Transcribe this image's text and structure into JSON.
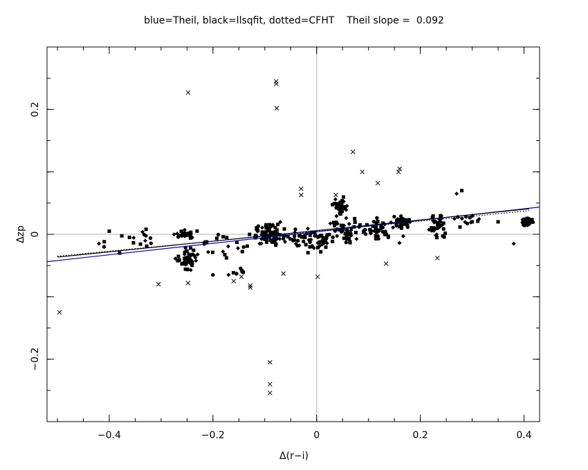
{
  "chart_data": {
    "type": "scatter",
    "title": "blue=Theil, black=llsqfit, dotted=CFHT    Theil slope =  0.092",
    "xlabel": "Δ(r−i)",
    "ylabel": "Δzp",
    "xlim": [
      -0.52,
      0.43
    ],
    "ylim": [
      -0.3,
      0.3
    ],
    "x_ticks": [
      -0.4,
      -0.2,
      0,
      0.2,
      0.4
    ],
    "x_tick_labels": [
      "−0.4",
      "−0.2",
      "0",
      "0.2",
      "0.4"
    ],
    "y_ticks": [
      -0.2,
      0,
      0.2
    ],
    "y_tick_labels": [
      "−0.2",
      "0",
      "0.2"
    ],
    "grid": false,
    "reference_lines": {
      "x": 0,
      "y": 0,
      "color": "#b0b0b0"
    },
    "fit_lines": [
      {
        "name": "Theil",
        "style": "solid",
        "color": "#0000cc",
        "slope": 0.092,
        "intercept": 0.004,
        "x_range": [
          -0.52,
          0.43
        ]
      },
      {
        "name": "llsqfit",
        "style": "solid",
        "color": "#000000",
        "slope": 0.085,
        "intercept": 0.006,
        "x_range": [
          -0.5,
          0.41
        ]
      },
      {
        "name": "CFHT",
        "style": "dotted",
        "color": "#000000",
        "slope": 0.08,
        "intercept": 0.005,
        "x_range": [
          -0.5,
          0.41
        ]
      }
    ],
    "outliers": [
      [
        -0.496,
        -0.125
      ],
      [
        -0.248,
        0.227
      ],
      [
        -0.078,
        0.245
      ],
      [
        -0.078,
        0.241
      ],
      [
        -0.077,
        0.202
      ],
      [
        -0.305,
        -0.08
      ],
      [
        -0.248,
        -0.078
      ],
      [
        -0.16,
        -0.075
      ],
      [
        -0.145,
        -0.068
      ],
      [
        -0.128,
        -0.085
      ],
      [
        -0.128,
        -0.082
      ],
      [
        -0.064,
        -0.063
      ],
      [
        -0.09,
        -0.205
      ],
      [
        -0.09,
        -0.24
      ],
      [
        -0.09,
        -0.254
      ],
      [
        -0.03,
        0.073
      ],
      [
        -0.03,
        0.063
      ],
      [
        0.002,
        -0.068
      ],
      [
        0.037,
        0.063
      ],
      [
        0.07,
        0.132
      ],
      [
        0.088,
        0.1
      ],
      [
        0.118,
        0.082
      ],
      [
        0.16,
        0.105
      ],
      [
        0.158,
        0.1
      ],
      [
        0.134,
        -0.047
      ],
      [
        0.233,
        -0.038
      ]
    ],
    "clusters": [
      {
        "x": -0.25,
        "y": -0.04,
        "sx": 0.015,
        "sy": 0.013,
        "n": 55
      },
      {
        "x": -0.25,
        "y": 0.0,
        "sx": 0.015,
        "sy": 0.008,
        "n": 25
      },
      {
        "x": -0.09,
        "y": 0.0,
        "sx": 0.025,
        "sy": 0.014,
        "n": 75
      },
      {
        "x": -0.15,
        "y": -0.06,
        "sx": 0.01,
        "sy": 0.007,
        "n": 8
      },
      {
        "x": -0.02,
        "y": -0.01,
        "sx": 0.035,
        "sy": 0.015,
        "n": 55
      },
      {
        "x": 0.045,
        "y": 0.045,
        "sx": 0.01,
        "sy": 0.01,
        "n": 45
      },
      {
        "x": 0.05,
        "y": 0.005,
        "sx": 0.03,
        "sy": 0.015,
        "n": 50
      },
      {
        "x": 0.12,
        "y": 0.01,
        "sx": 0.03,
        "sy": 0.016,
        "n": 40
      },
      {
        "x": 0.165,
        "y": 0.02,
        "sx": 0.015,
        "sy": 0.01,
        "n": 35
      },
      {
        "x": 0.235,
        "y": 0.015,
        "sx": 0.015,
        "sy": 0.015,
        "n": 40
      },
      {
        "x": 0.29,
        "y": 0.025,
        "sx": 0.03,
        "sy": 0.01,
        "n": 12
      },
      {
        "x": 0.405,
        "y": 0.02,
        "sx": 0.008,
        "sy": 0.007,
        "n": 30
      },
      {
        "x": -0.34,
        "y": -0.01,
        "sx": 0.04,
        "sy": 0.015,
        "n": 14
      },
      {
        "x": -0.18,
        "y": -0.02,
        "sx": 0.04,
        "sy": 0.02,
        "n": 18
      }
    ],
    "extra_points": [
      [
        -0.42,
        -0.015
      ],
      [
        -0.41,
        -0.02
      ],
      [
        -0.4,
        0.005
      ],
      [
        -0.38,
        -0.03
      ],
      [
        -0.2,
        -0.065
      ],
      [
        -0.17,
        -0.065
      ],
      [
        -0.11,
        -0.015
      ],
      [
        0.27,
        0.065
      ],
      [
        0.28,
        0.07
      ],
      [
        0.38,
        -0.015
      ],
      [
        0.3,
        0.02
      ],
      [
        0.35,
        0.02
      ]
    ]
  }
}
